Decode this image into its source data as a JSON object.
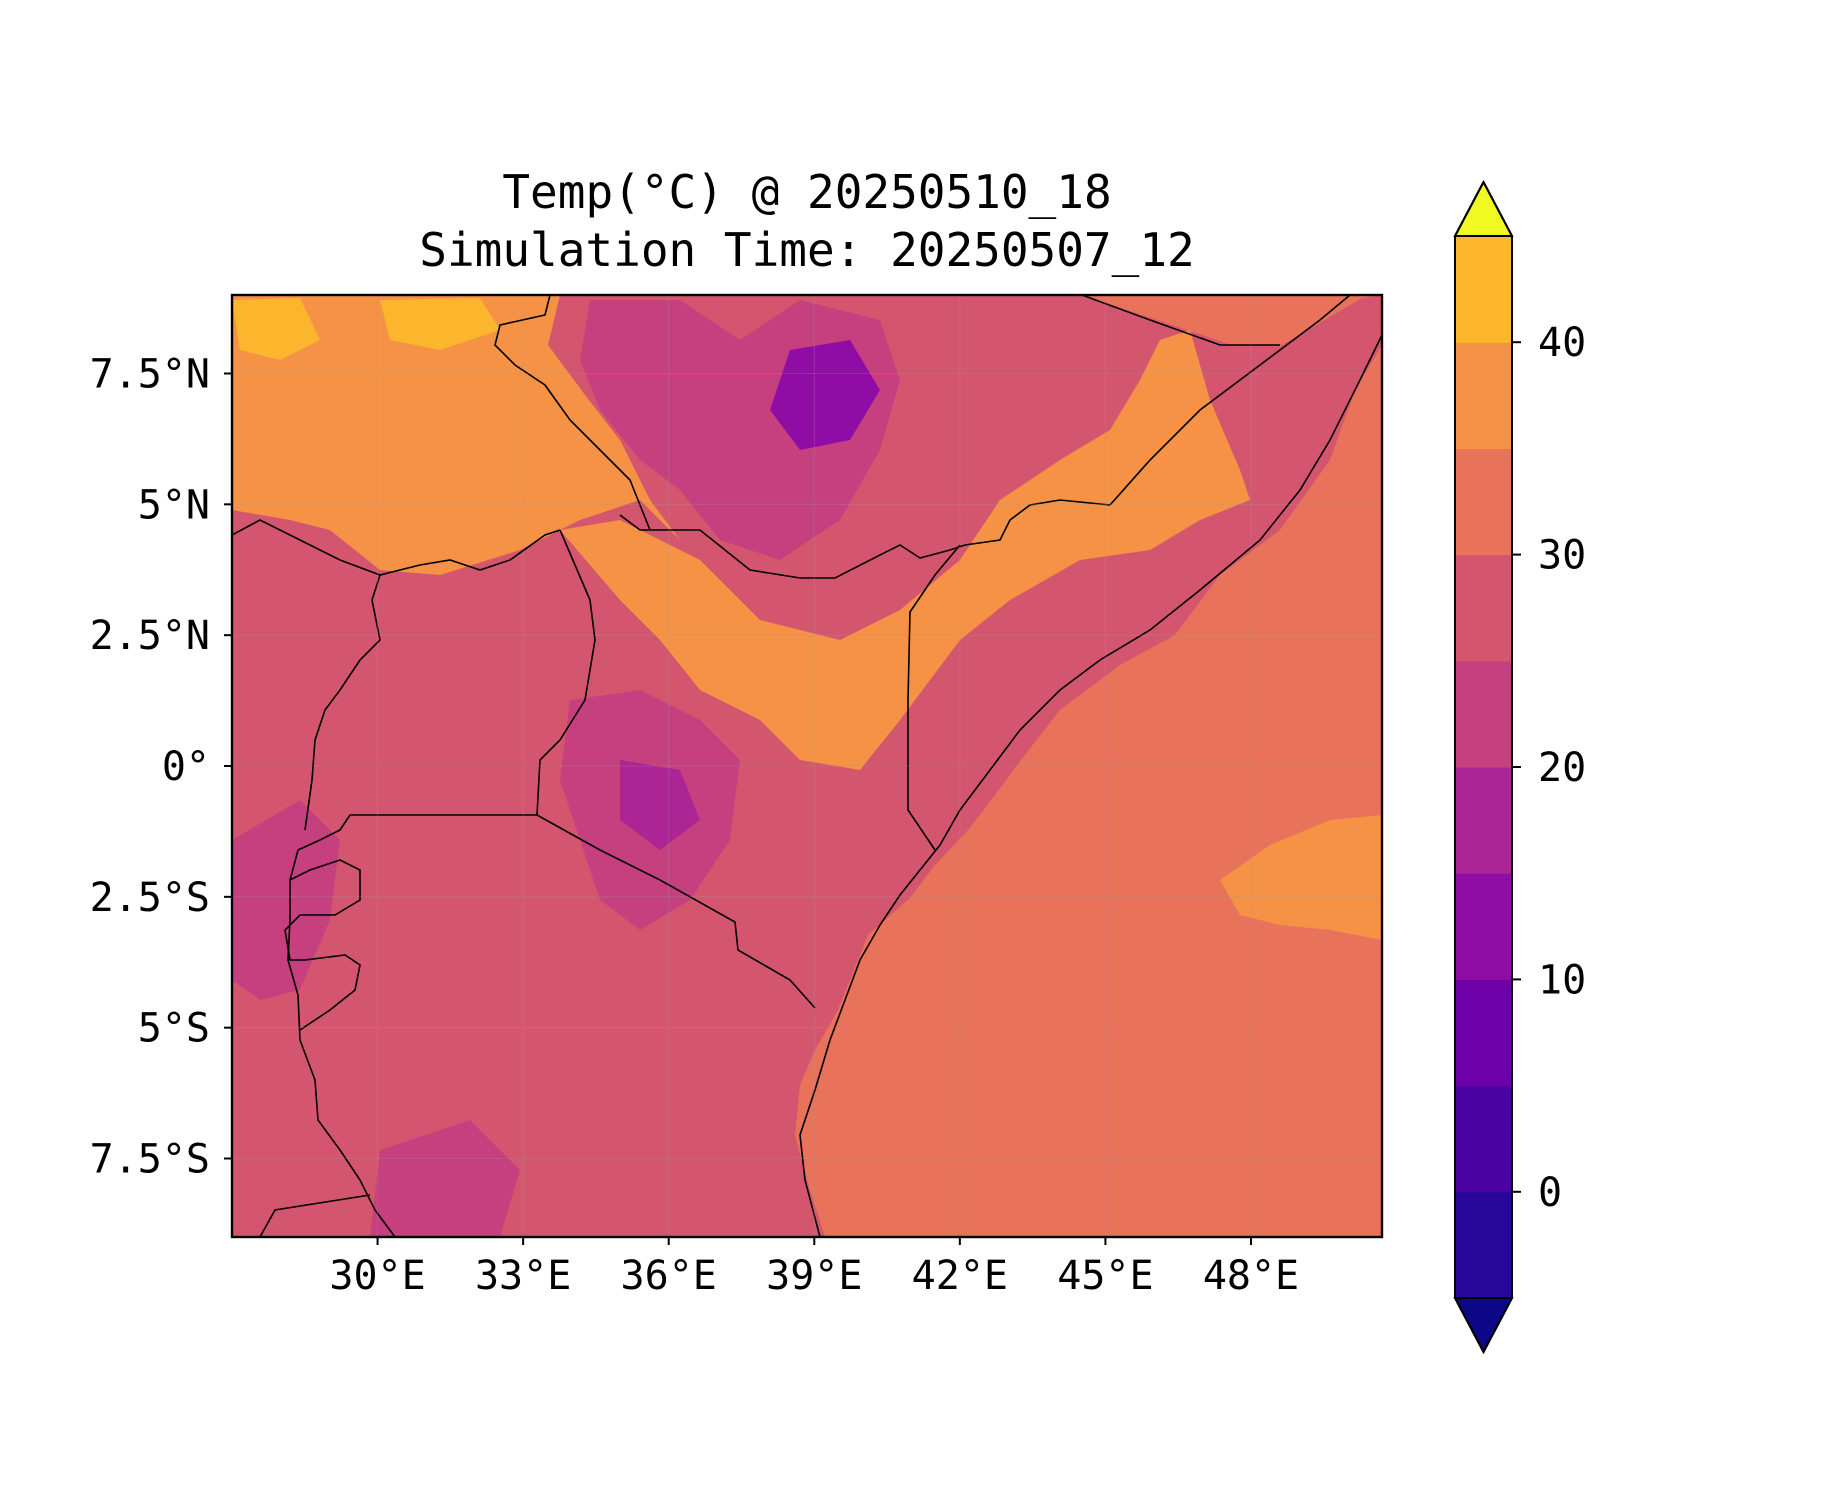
{
  "title": "Temp(°C) @ 20250510_18",
  "subtitle": "Simulation Time: 20250507_12",
  "map": {
    "lon_range": [
      27.0,
      50.7
    ],
    "lat_range": [
      -9.0,
      9.0
    ],
    "x_ticks": [
      {
        "value": 30,
        "label": "30°E"
      },
      {
        "value": 33,
        "label": "33°E"
      },
      {
        "value": 36,
        "label": "36°E"
      },
      {
        "value": 39,
        "label": "39°E"
      },
      {
        "value": 42,
        "label": "42°E"
      },
      {
        "value": 45,
        "label": "45°E"
      },
      {
        "value": 48,
        "label": "48°E"
      }
    ],
    "y_ticks": [
      {
        "value": 7.5,
        "label": "7.5°N"
      },
      {
        "value": 5,
        "label": "5°N"
      },
      {
        "value": 2.5,
        "label": "2.5°N"
      },
      {
        "value": 0,
        "label": "0°"
      },
      {
        "value": -2.5,
        "label": "2.5°S"
      },
      {
        "value": -5,
        "label": "5°S"
      },
      {
        "value": -7.5,
        "label": "7.5°S"
      }
    ],
    "ocean_color": "#e8735a",
    "land_base_color": "#d4566e",
    "border_color": "#000000"
  },
  "colorbar": {
    "levels": [
      -5,
      0,
      5,
      10,
      15,
      20,
      25,
      30,
      35,
      40,
      45
    ],
    "colors": [
      "#27069a",
      "#4b03a1",
      "#6e00a8",
      "#8f0da4",
      "#ad2495",
      "#c6407f",
      "#d5546e",
      "#e8735a",
      "#f69245",
      "#fcb62e",
      "#f3e125"
    ],
    "extend_low_color": "#0d0887",
    "extend_high_color": "#f0f921",
    "tick_labels": [
      {
        "value": 0,
        "label": "0"
      },
      {
        "value": 10,
        "label": "10"
      },
      {
        "value": 20,
        "label": "20"
      },
      {
        "value": 30,
        "label": "30"
      },
      {
        "value": 40,
        "label": "40"
      }
    ]
  }
}
